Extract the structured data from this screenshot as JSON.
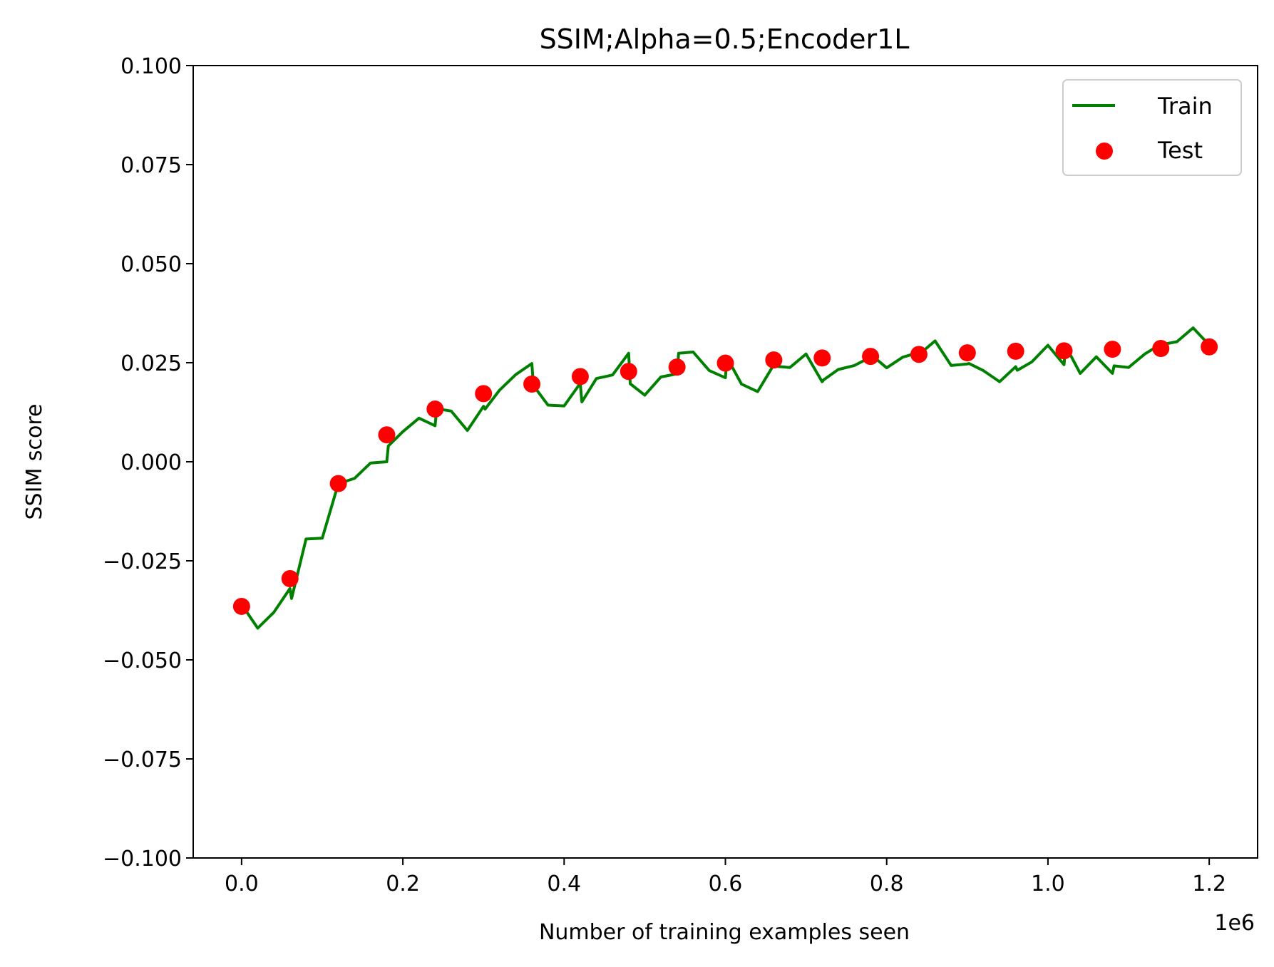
{
  "chart_data": {
    "type": "line",
    "title": "SSIM;Alpha=0.5;Encoder1L",
    "xlabel": "Number of training examples seen",
    "ylabel": "SSIM score",
    "x_offset_label": "1e6",
    "xlim": [
      -0.06,
      1.26
    ],
    "ylim": [
      -0.1,
      0.1
    ],
    "xticks": [
      0.0,
      0.2,
      0.4,
      0.6,
      0.8,
      1.0,
      1.2
    ],
    "xtick_labels": [
      "0.0",
      "0.2",
      "0.4",
      "0.6",
      "0.8",
      "1.0",
      "1.2"
    ],
    "yticks": [
      -0.1,
      -0.075,
      -0.05,
      -0.025,
      0.0,
      0.025,
      0.05,
      0.075,
      0.1
    ],
    "ytick_labels": [
      "−0.100",
      "−0.075",
      "−0.050",
      "−0.025",
      "0.000",
      "0.025",
      "0.050",
      "0.075",
      "0.100"
    ],
    "grid": false,
    "legend_position": "top-right",
    "series": [
      {
        "name": "Train",
        "kind": "line",
        "color": "#008000",
        "x": [
          0.0,
          0.02,
          0.04,
          0.06,
          0.062,
          0.08,
          0.1,
          0.12,
          0.14,
          0.16,
          0.18,
          0.182,
          0.2,
          0.22,
          0.24,
          0.242,
          0.26,
          0.28,
          0.3,
          0.302,
          0.32,
          0.34,
          0.36,
          0.362,
          0.38,
          0.4,
          0.42,
          0.422,
          0.44,
          0.46,
          0.48,
          0.482,
          0.5,
          0.52,
          0.54,
          0.542,
          0.56,
          0.58,
          0.6,
          0.602,
          0.62,
          0.64,
          0.66,
          0.662,
          0.68,
          0.7,
          0.72,
          0.722,
          0.74,
          0.76,
          0.78,
          0.782,
          0.8,
          0.82,
          0.84,
          0.842,
          0.86,
          0.88,
          0.9,
          0.902,
          0.92,
          0.94,
          0.96,
          0.962,
          0.98,
          1.0,
          1.02,
          1.022,
          1.04,
          1.06,
          1.08,
          1.082,
          1.1,
          1.12,
          1.14,
          1.142,
          1.16,
          1.18,
          1.2
        ],
        "y": [
          -0.036,
          -0.042,
          -0.038,
          -0.032,
          -0.0345,
          -0.0195,
          -0.0193,
          -0.0055,
          -0.0042,
          -0.0003,
          0.0,
          0.004,
          0.0076,
          0.011,
          0.0091,
          0.0134,
          0.0128,
          0.0079,
          0.014,
          0.0133,
          0.0181,
          0.022,
          0.0248,
          0.0192,
          0.0143,
          0.0141,
          0.0198,
          0.0151,
          0.021,
          0.0219,
          0.0274,
          0.0197,
          0.0168,
          0.0214,
          0.0222,
          0.0274,
          0.0277,
          0.023,
          0.0212,
          0.0263,
          0.0196,
          0.0177,
          0.0245,
          0.0241,
          0.0238,
          0.0272,
          0.0202,
          0.0207,
          0.0233,
          0.0243,
          0.0264,
          0.0268,
          0.0237,
          0.0264,
          0.0276,
          0.0274,
          0.0305,
          0.0243,
          0.0247,
          0.0248,
          0.023,
          0.0202,
          0.024,
          0.0231,
          0.0252,
          0.0294,
          0.0245,
          0.0292,
          0.0223,
          0.0265,
          0.0223,
          0.0242,
          0.0238,
          0.0272,
          0.0297,
          0.0296,
          0.0303,
          0.0338,
          0.0295
        ]
      },
      {
        "name": "Test",
        "kind": "scatter",
        "color": "#ff0000",
        "x": [
          0.0,
          0.06,
          0.12,
          0.18,
          0.24,
          0.3,
          0.36,
          0.42,
          0.48,
          0.54,
          0.6,
          0.66,
          0.72,
          0.78,
          0.84,
          0.9,
          0.96,
          1.02,
          1.08,
          1.14,
          1.2
        ],
        "y": [
          -0.0365,
          -0.0295,
          -0.0055,
          0.0068,
          0.0133,
          0.0172,
          0.0196,
          0.0215,
          0.0228,
          0.0239,
          0.0249,
          0.0257,
          0.0262,
          0.0266,
          0.0271,
          0.0275,
          0.0279,
          0.028,
          0.0284,
          0.0286,
          0.029
        ]
      }
    ]
  }
}
